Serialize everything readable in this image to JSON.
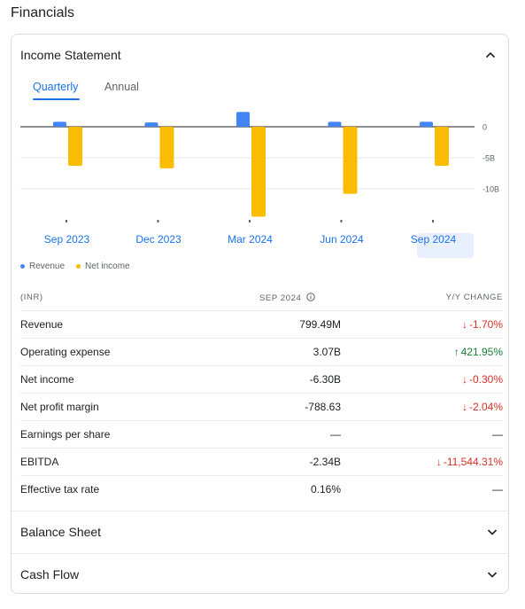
{
  "page_title": "Financials",
  "income": {
    "title": "Income Statement",
    "tabs": [
      "Quarterly",
      "Annual"
    ],
    "active_tab": "Quarterly"
  },
  "colors": {
    "revenue": "#4285f4",
    "net_income": "#fbbc04",
    "accent": "#1a73e8",
    "negative": "#d93025",
    "positive": "#188038"
  },
  "chart_data": {
    "type": "bar",
    "categories": [
      "Sep 2023",
      "Dec 2023",
      "Mar 2024",
      "Jun 2024",
      "Sep 2024"
    ],
    "selected_category": "Sep 2024",
    "series": [
      {
        "name": "Revenue",
        "values": [
          0.8,
          0.7,
          2.4,
          0.8,
          0.8
        ]
      },
      {
        "name": "Net income",
        "values": [
          -6.3,
          -6.7,
          -14.5,
          -10.8,
          -6.3
        ]
      }
    ],
    "y_ticks": [
      {
        "value": 0,
        "label": "0"
      },
      {
        "value": -5,
        "label": "-5B"
      },
      {
        "value": -10,
        "label": "-10B"
      }
    ],
    "ylim": [
      -15,
      2.6
    ],
    "legend": "bottom-left",
    "grid": true
  },
  "table": {
    "headers": {
      "label": "(INR)",
      "period": "SEP 2024",
      "change": "Y/Y CHANGE"
    },
    "rows": [
      {
        "label": "Revenue",
        "value": "799.49M",
        "change": "-1.70%",
        "dir": "down"
      },
      {
        "label": "Operating expense",
        "value": "3.07B",
        "change": "421.95%",
        "dir": "up"
      },
      {
        "label": "Net income",
        "value": "-6.30B",
        "change": "-0.30%",
        "dir": "down"
      },
      {
        "label": "Net profit margin",
        "value": "-788.63",
        "change": "-2.04%",
        "dir": "down"
      },
      {
        "label": "Earnings per share",
        "value": "—",
        "change": "—",
        "dir": "none"
      },
      {
        "label": "EBITDA",
        "value": "-2.34B",
        "change": "-11,544.31%",
        "dir": "down"
      },
      {
        "label": "Effective tax rate",
        "value": "0.16%",
        "change": "—",
        "dir": "none"
      }
    ]
  },
  "sections": [
    "Balance Sheet",
    "Cash Flow"
  ]
}
